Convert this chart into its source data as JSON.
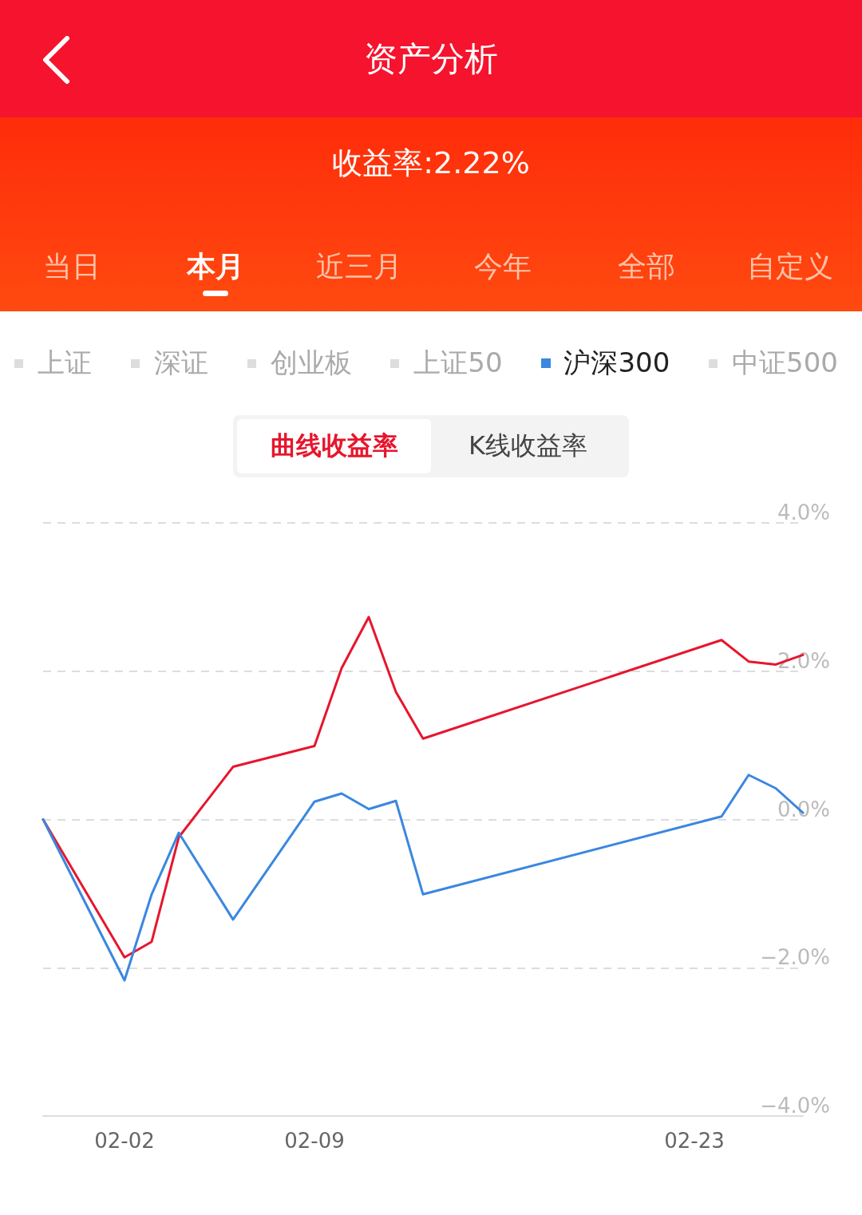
{
  "chart_data": {
    "type": "line",
    "title": "资产分析",
    "subtitle": "收益率:2.22%",
    "annotations": [
      "当日",
      "本月",
      "近三月",
      "今年",
      "全部",
      "自定义",
      "上证",
      "深证",
      "创业板",
      "上证50",
      "中证500",
      "曲线收益率",
      "K线收益率"
    ],
    "x": [
      "--01-30",
      "--02-02",
      "--02-03",
      "--02-04",
      "--02-06",
      "--02-09",
      "--02-10",
      "--02-11",
      "--02-12",
      "--02-13",
      "--02-24",
      "--02-25",
      "--02-26",
      "--02-27"
    ],
    "series": [
      {
        "color": "#e6162d",
        "values": [
          0.0,
          -1.86,
          -1.65,
          -0.24,
          0.71,
          0.99,
          2.04,
          2.73,
          1.72,
          1.09,
          2.42,
          2.13,
          2.09,
          2.22
        ]
      },
      {
        "name": "沪深300",
        "color": "#3a87e0",
        "values": [
          0.0,
          -2.17,
          -1.01,
          -0.18,
          -1.35,
          0.24,
          0.35,
          0.14,
          0.25,
          -1.01,
          0.04,
          0.6,
          0.42,
          0.09
        ]
      }
    ],
    "xlim": [
      "--01-30",
      "--02-27"
    ],
    "xticks": [
      {
        "value": "--02-02",
        "label": "02-02"
      },
      {
        "value": "--02-09",
        "label": "02-09"
      },
      {
        "value": "--02-23",
        "label": "02-23"
      }
    ],
    "ylim": [
      -4,
      4
    ],
    "yticks": [
      {
        "value": -4,
        "label": "−4.0%"
      },
      {
        "value": -2,
        "label": "−2.0%"
      },
      {
        "value": 0,
        "label": "0.0%"
      },
      {
        "value": 2,
        "label": "2.0%"
      },
      {
        "value": 4,
        "label": "4.0%"
      }
    ],
    "grid": "y",
    "legend": "top",
    "marker": "none",
    "line_style": "solid"
  }
}
